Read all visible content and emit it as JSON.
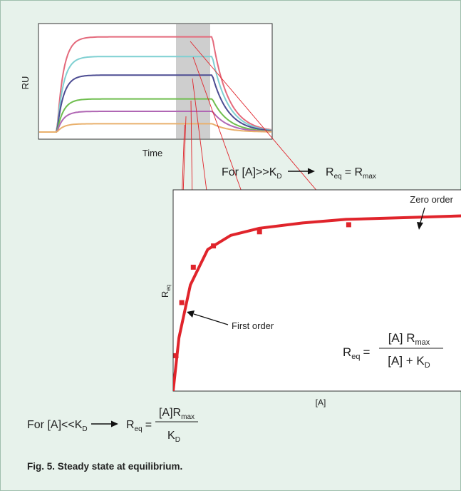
{
  "colors": {
    "background": "#e7f2eb",
    "connector": "#e0242b",
    "curve": "#e0242b",
    "highlight_band": "#bdbdbd"
  },
  "sensorgram": {
    "ylabel": "RU",
    "xlabel": "Time",
    "traces": [
      {
        "color": "#e46a7c",
        "level": 0.92
      },
      {
        "color": "#7fd0d2",
        "level": 0.73
      },
      {
        "color": "#4c4c92",
        "level": 0.55
      },
      {
        "color": "#6fbe4e",
        "level": 0.32
      },
      {
        "color": "#b067b4",
        "level": 0.2
      },
      {
        "color": "#e9b06c",
        "level": 0.08
      }
    ]
  },
  "chart_data": {
    "type": "line",
    "xlabel": "[A]",
    "ylabel": "R_eq",
    "series": [
      {
        "x": [
          0,
          0.02,
          0.06,
          0.12,
          0.2,
          0.3,
          0.45,
          0.6,
          0.8,
          1.0
        ],
        "y": [
          0,
          0.3,
          0.6,
          0.8,
          0.88,
          0.92,
          0.95,
          0.97,
          0.98,
          0.99
        ]
      }
    ],
    "markers": [
      {
        "x": 0.01,
        "y": 0.2
      },
      {
        "x": 0.03,
        "y": 0.5
      },
      {
        "x": 0.07,
        "y": 0.7
      },
      {
        "x": 0.14,
        "y": 0.82
      },
      {
        "x": 0.3,
        "y": 0.9
      },
      {
        "x": 0.61,
        "y": 0.94
      }
    ]
  },
  "annotations": {
    "zero_order": "Zero order",
    "first_order": "First order"
  },
  "eq_high": {
    "prefix": "For [A]>>K",
    "prefix_sub": "D",
    "lhs": "R",
    "lhs_sub": "eq",
    "equals": "= R",
    "rhs_sub": "max"
  },
  "eq_main": {
    "lhs": "R",
    "lhs_sub": "eq",
    "equals": "=",
    "num": "[A] R",
    "num_sub": "max",
    "den": "[A] + K",
    "den_sub": "D"
  },
  "eq_low": {
    "prefix": "For [A]<<K",
    "prefix_sub": "D",
    "lhs": "R",
    "lhs_sub": "eq",
    "equals": "=",
    "num": "[A]R",
    "num_sub": "max",
    "den": "K",
    "den_sub": "D"
  },
  "caption": "Fig. 5. Steady state at equilibrium."
}
